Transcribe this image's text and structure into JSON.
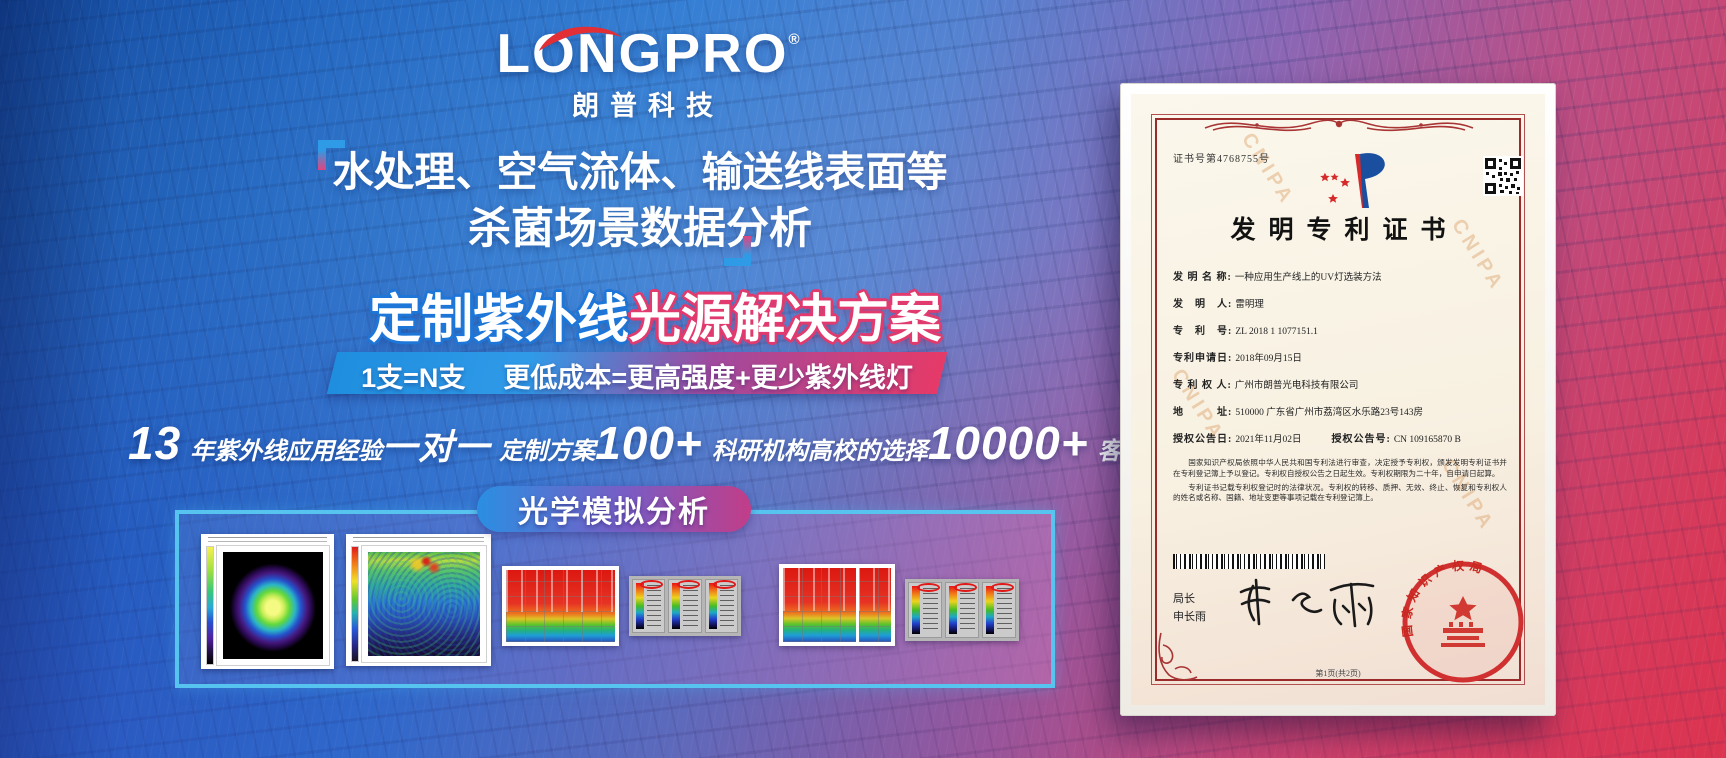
{
  "brand": {
    "name": "LONGPRO",
    "registered": "®",
    "cn": "朗普科技"
  },
  "headline": {
    "line1": "水处理、空气流体、输送线表面等",
    "line2": "杀菌场景数据分析"
  },
  "solution": {
    "title_blue": "定制紫外线",
    "title_pink": "光源解决方案",
    "sub_left": "1支=N支",
    "sub_right": "更低成本=更高强度+更少紫外线灯"
  },
  "stats": [
    {
      "value": "13",
      "cjk": false,
      "label": "年紫外线应用经验"
    },
    {
      "value": "一对一",
      "cjk": true,
      "label": "定制方案"
    },
    {
      "value": "100+",
      "cjk": false,
      "label": "科研机构高校的选择"
    },
    {
      "value": "10000+",
      "cjk": false,
      "label": "客户案例见证"
    }
  ],
  "simulation": {
    "badge": "光学模拟分析",
    "thumbnails": [
      "beam-irradiance-map",
      "uv-intensity-distribution-map",
      "surface-dose-heatmap",
      "intensity-scale-readouts",
      "surface-dose-heatmap-wide",
      "intensity-scale-readouts-2"
    ]
  },
  "certificate": {
    "cert_no": "证书号第4768755号",
    "title": "发明专利证书",
    "fields": [
      {
        "label": "发 明 名 称:",
        "value": "一种应用生产线上的UV灯选装方法"
      },
      {
        "label": "发　明　人:",
        "value": "雷明理"
      },
      {
        "label": "专　利　号:",
        "value": "ZL 2018 1 1077151.1"
      },
      {
        "label": "专利申请日:",
        "value": "2018年09月15日"
      },
      {
        "label": "专 利 权 人:",
        "value": "广州市朗普光电科技有限公司"
      },
      {
        "label": "地　　　址:",
        "value": "510000 广东省广州市荔湾区水乐路23号143房"
      }
    ],
    "grant": {
      "date_label": "授权公告日:",
      "date_value": "2021年11月02日",
      "no_label": "授权公告号:",
      "no_value": "CN 109165870 B"
    },
    "paragraphs": [
      "国家知识产权局依照中华人民共和国专利法进行审查，决定授予专利权，颁发发明专利证书并在专利登记簿上予以登记。专利权自授权公告之日起生效。专利权期限为二十年，自申请日起算。",
      "专利证书记载专利权登记时的法律状况。专利权的转移、质押、无效、终止、恢复和专利权人的姓名或名称、国籍、地址变更等事项记载在专利登记簿上。"
    ],
    "director_label": "局长",
    "director_name": "申长雨",
    "seal_text": "国家知识产权局",
    "footer": "第1页(共2页)",
    "watermark": "CNIPA"
  },
  "colors": {
    "accent_blue": "#2e8fe2",
    "accent_pink": "#e23a6e",
    "panel_border": "#57c4f0",
    "cert_border_red": "#9b2b2b",
    "seal_red": "#d03030",
    "logo_swoosh_red": "#e12f35"
  }
}
